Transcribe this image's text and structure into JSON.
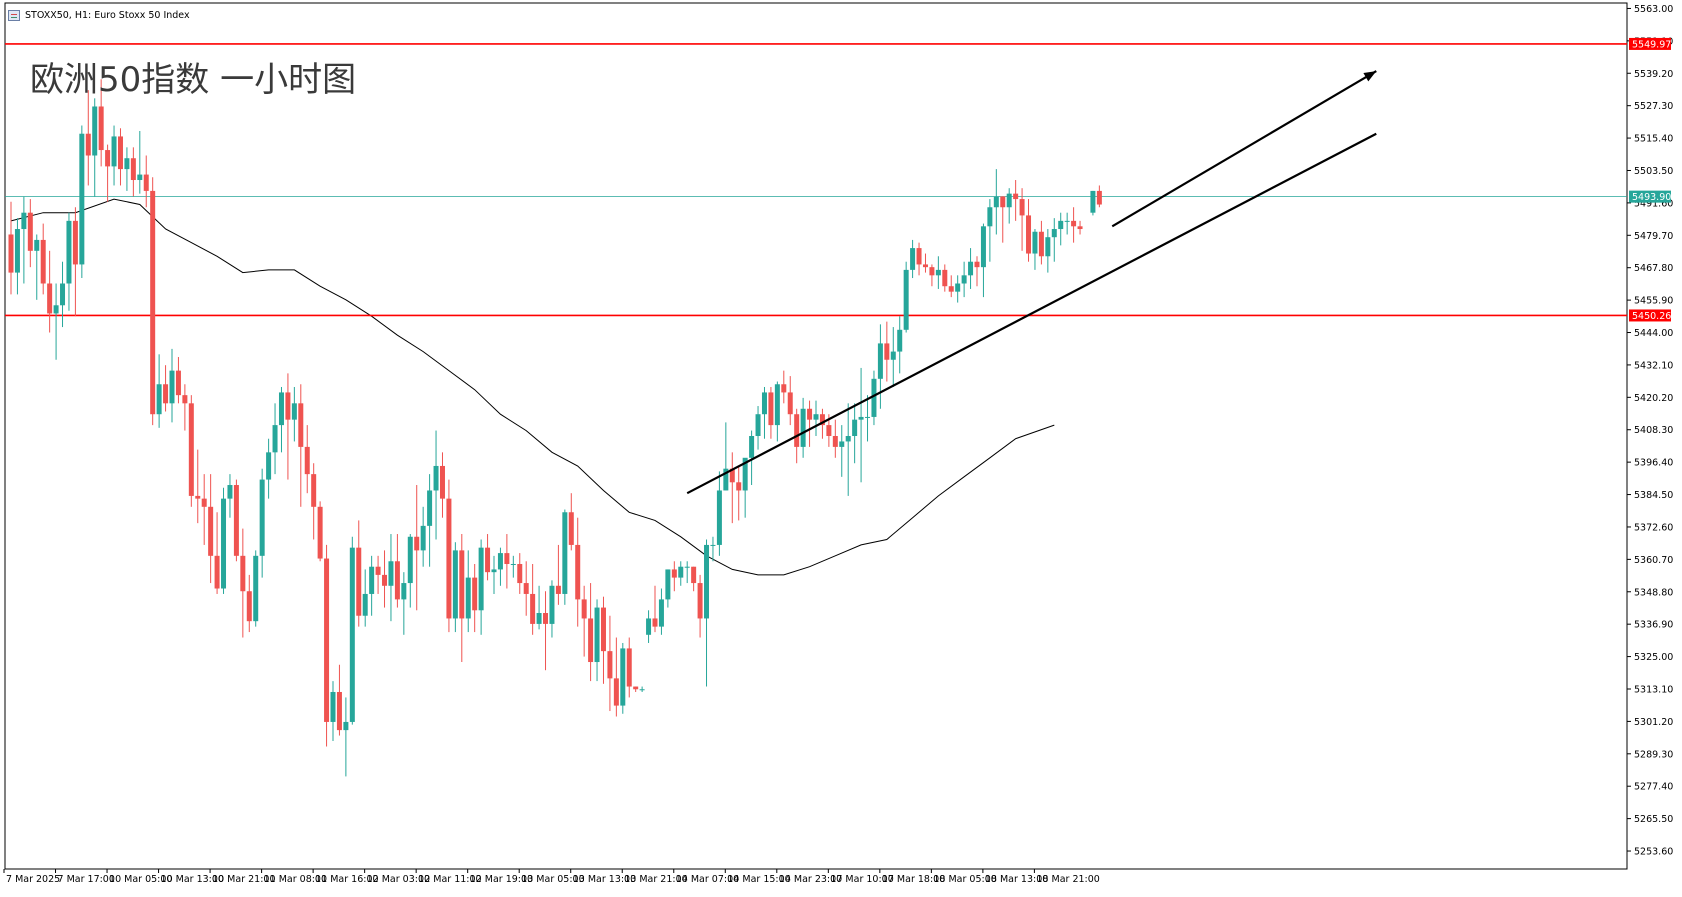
{
  "header": {
    "symbol_info": "STOXX50, H1:  Euro Stoxx 50 Index",
    "icon": "chart-window-icon"
  },
  "watermark_text": "欧洲50指数 一小时图",
  "colors": {
    "bull": "#26a69a",
    "bear": "#ef5350",
    "level_line": "#ff0000",
    "price_line": "#26a69a",
    "ma_line": "#000000",
    "trend_line": "#000000"
  },
  "chart_data": {
    "type": "candlestick",
    "symbol": "STOXX50",
    "timeframe": "H1",
    "title": "Euro Stoxx 50 Index",
    "ylim": [
      5247,
      5565
    ],
    "yticks": [
      5563.0,
      5551.1,
      5539.2,
      5527.3,
      5515.4,
      5503.5,
      5491.6,
      5479.7,
      5467.8,
      5455.9,
      5444.0,
      5432.1,
      5420.2,
      5408.3,
      5396.4,
      5384.5,
      5372.6,
      5360.7,
      5348.8,
      5336.9,
      5325.0,
      5313.1,
      5301.2,
      5289.3,
      5277.4,
      5265.5,
      5253.6
    ],
    "x_tick_labels": [
      "7 Mar 2025",
      "7 Mar 17:00",
      "10 Mar 05:00",
      "10 Mar 13:00",
      "10 Mar 21:00",
      "11 Mar 08:00",
      "11 Mar 16:00",
      "12 Mar 03:00",
      "12 Mar 11:00",
      "12 Mar 19:00",
      "13 Mar 05:00",
      "13 Mar 13:00",
      "13 Mar 21:00",
      "14 Mar 07:00",
      "14 Mar 15:00",
      "14 Mar 23:00",
      "17 Mar 10:00",
      "17 Mar 18:00",
      "18 Mar 05:00",
      "18 Mar 13:00",
      "18 Mar 21:00"
    ],
    "x_tick_positions": [
      0,
      8,
      16,
      24,
      32,
      40,
      48,
      56,
      64,
      72,
      80,
      88,
      96,
      104,
      112,
      120,
      128,
      136,
      144,
      152,
      160
    ],
    "candles": [
      [
        5480,
        5492,
        5458,
        5466
      ],
      [
        5466,
        5486,
        5458,
        5482
      ],
      [
        5482,
        5494,
        5462,
        5488
      ],
      [
        5488,
        5493,
        5468,
        5474
      ],
      [
        5474,
        5480,
        5456,
        5478
      ],
      [
        5478,
        5484,
        5458,
        5462
      ],
      [
        5462,
        5474,
        5444,
        5451
      ],
      [
        5451,
        5462,
        5434,
        5454
      ],
      [
        5454,
        5470,
        5446,
        5462
      ],
      [
        5462,
        5488,
        5452,
        5485
      ],
      [
        5485,
        5490,
        5450,
        5469
      ],
      [
        5469,
        5520,
        5464,
        5517
      ],
      [
        5517,
        5533,
        5498,
        5509
      ],
      [
        5509,
        5530,
        5494,
        5527
      ],
      [
        5527,
        5537,
        5505,
        5511
      ],
      [
        5511,
        5513,
        5492,
        5505
      ],
      [
        5505,
        5520,
        5498,
        5516
      ],
      [
        5516,
        5519,
        5498,
        5504
      ],
      [
        5504,
        5512,
        5496,
        5508
      ],
      [
        5508,
        5512,
        5494,
        5500
      ],
      [
        5500,
        5518,
        5495,
        5502
      ],
      [
        5502,
        5509,
        5490,
        5496
      ],
      [
        5496,
        5501,
        5410,
        5414
      ],
      [
        5414,
        5436,
        5409,
        5425
      ],
      [
        5425,
        5432,
        5415,
        5418
      ],
      [
        5418,
        5438,
        5411,
        5430
      ],
      [
        5430,
        5435,
        5418,
        5421
      ],
      [
        5421,
        5425,
        5408,
        5418
      ],
      [
        5418,
        5421,
        5380,
        5384
      ],
      [
        5384,
        5401,
        5374,
        5383
      ],
      [
        5383,
        5392,
        5366,
        5380
      ],
      [
        5380,
        5392,
        5352,
        5362
      ],
      [
        5362,
        5378,
        5348,
        5350
      ],
      [
        5350,
        5387,
        5348,
        5383
      ],
      [
        5383,
        5392,
        5376,
        5388
      ],
      [
        5388,
        5390,
        5360,
        5362
      ],
      [
        5362,
        5372,
        5332,
        5349
      ],
      [
        5349,
        5355,
        5334,
        5338
      ],
      [
        5338,
        5364,
        5336,
        5362
      ],
      [
        5362,
        5394,
        5354,
        5390
      ],
      [
        5390,
        5405,
        5383,
        5400
      ],
      [
        5400,
        5418,
        5392,
        5410
      ],
      [
        5410,
        5424,
        5400,
        5422
      ],
      [
        5422,
        5429,
        5390,
        5412
      ],
      [
        5412,
        5424,
        5404,
        5418
      ],
      [
        5418,
        5425,
        5380,
        5402
      ],
      [
        5402,
        5410,
        5385,
        5392
      ],
      [
        5392,
        5396,
        5368,
        5380
      ],
      [
        5380,
        5382,
        5360,
        5361
      ],
      [
        5361,
        5366,
        5292,
        5301
      ],
      [
        5301,
        5316,
        5294,
        5312
      ],
      [
        5312,
        5322,
        5296,
        5298
      ],
      [
        5298,
        5310,
        5281,
        5301
      ],
      [
        5301,
        5369,
        5300,
        5365
      ],
      [
        5365,
        5375,
        5336,
        5340
      ],
      [
        5340,
        5357,
        5336,
        5348
      ],
      [
        5348,
        5362,
        5340,
        5358
      ],
      [
        5358,
        5362,
        5348,
        5355
      ],
      [
        5355,
        5364,
        5343,
        5351
      ],
      [
        5351,
        5370,
        5338,
        5360
      ],
      [
        5360,
        5370,
        5343,
        5346
      ],
      [
        5346,
        5356,
        5333,
        5352
      ],
      [
        5352,
        5370,
        5343,
        5369
      ],
      [
        5369,
        5388,
        5342,
        5364
      ],
      [
        5364,
        5380,
        5358,
        5373
      ],
      [
        5373,
        5392,
        5358,
        5386
      ],
      [
        5386,
        5408,
        5368,
        5395
      ],
      [
        5395,
        5400,
        5376,
        5383
      ],
      [
        5383,
        5390,
        5334,
        5339
      ],
      [
        5339,
        5367,
        5334,
        5364
      ],
      [
        5364,
        5370,
        5323,
        5339
      ],
      [
        5339,
        5364,
        5334,
        5354
      ],
      [
        5354,
        5359,
        5334,
        5342
      ],
      [
        5342,
        5368,
        5333,
        5365
      ],
      [
        5365,
        5370,
        5353,
        5356
      ],
      [
        5356,
        5362,
        5348,
        5357
      ],
      [
        5357,
        5365,
        5351,
        5363
      ],
      [
        5363,
        5370,
        5350,
        5359
      ],
      [
        5359,
        5362,
        5354,
        5359
      ],
      [
        5359,
        5363,
        5348,
        5352
      ],
      [
        5352,
        5360,
        5340,
        5348
      ],
      [
        5348,
        5359,
        5333,
        5337
      ],
      [
        5337,
        5351,
        5335,
        5341
      ],
      [
        5341,
        5349,
        5320,
        5337
      ],
      [
        5337,
        5353,
        5332,
        5351
      ],
      [
        5351,
        5366,
        5344,
        5348
      ],
      [
        5348,
        5379,
        5344,
        5378
      ],
      [
        5378,
        5385,
        5364,
        5366
      ],
      [
        5366,
        5376,
        5336,
        5346
      ],
      [
        5346,
        5351,
        5325,
        5339
      ],
      [
        5339,
        5352,
        5316,
        5323
      ],
      [
        5323,
        5346,
        5316,
        5343
      ],
      [
        5343,
        5347,
        5315,
        5327
      ],
      [
        5327,
        5340,
        5305,
        5317
      ],
      [
        5317,
        5332,
        5303,
        5307
      ],
      [
        5307,
        5330,
        5304,
        5328
      ],
      [
        5328,
        5332,
        5310,
        5314
      ],
      [
        5314,
        5314,
        5312,
        5313
      ],
      [
        5313,
        5314,
        5312,
        5313
      ],
      [
        5333,
        5342,
        5330,
        5339
      ],
      [
        5339,
        5351,
        5334,
        5336
      ],
      [
        5336,
        5350,
        5333,
        5346
      ],
      [
        5346,
        5357,
        5343,
        5357
      ],
      [
        5357,
        5360,
        5349,
        5354
      ],
      [
        5354,
        5360,
        5351,
        5358
      ],
      [
        5358,
        5360,
        5352,
        5358
      ],
      [
        5358,
        5358,
        5349,
        5352
      ],
      [
        5352,
        5355,
        5332,
        5339
      ],
      [
        5339,
        5368,
        5314,
        5366
      ],
      [
        5366,
        5369,
        5360,
        5366
      ],
      [
        5366,
        5393,
        5362,
        5386
      ],
      [
        5386,
        5411,
        5386,
        5394
      ],
      [
        5394,
        5400,
        5374,
        5389
      ],
      [
        5389,
        5395,
        5375,
        5386
      ],
      [
        5386,
        5396,
        5376,
        5398
      ],
      [
        5398,
        5408,
        5388,
        5406
      ],
      [
        5406,
        5417,
        5401,
        5414
      ],
      [
        5414,
        5424,
        5405,
        5422
      ],
      [
        5422,
        5424,
        5405,
        5410
      ],
      [
        5410,
        5426,
        5404,
        5425
      ],
      [
        5425,
        5430,
        5418,
        5422
      ],
      [
        5422,
        5428,
        5410,
        5414
      ],
      [
        5414,
        5416,
        5396,
        5402
      ],
      [
        5402,
        5420,
        5398,
        5416
      ],
      [
        5416,
        5419,
        5402,
        5412
      ],
      [
        5412,
        5419,
        5406,
        5414
      ],
      [
        5414,
        5416,
        5405,
        5410
      ],
      [
        5410,
        5414,
        5402,
        5406
      ],
      [
        5406,
        5412,
        5398,
        5402
      ],
      [
        5402,
        5410,
        5391,
        5404
      ],
      [
        5404,
        5418,
        5384,
        5406
      ],
      [
        5406,
        5418,
        5396,
        5412
      ],
      [
        5412,
        5431,
        5389,
        5413
      ],
      [
        5413,
        5421,
        5404,
        5413
      ],
      [
        5413,
        5430,
        5410,
        5427
      ],
      [
        5427,
        5447,
        5416,
        5440
      ],
      [
        5440,
        5448,
        5426,
        5434
      ],
      [
        5434,
        5446,
        5424,
        5437
      ],
      [
        5437,
        5450,
        5429,
        5445
      ],
      [
        5445,
        5470,
        5444,
        5467
      ],
      [
        5467,
        5478,
        5464,
        5475
      ],
      [
        5475,
        5477,
        5465,
        5469
      ],
      [
        5469,
        5473,
        5466,
        5468
      ],
      [
        5468,
        5469,
        5461,
        5465
      ],
      [
        5465,
        5472,
        5460,
        5467
      ],
      [
        5467,
        5469,
        5459,
        5461
      ],
      [
        5461,
        5465,
        5457,
        5459
      ],
      [
        5459,
        5465,
        5455,
        5462
      ],
      [
        5462,
        5470,
        5457,
        5465
      ],
      [
        5465,
        5475,
        5460,
        5470
      ],
      [
        5470,
        5472,
        5461,
        5468
      ],
      [
        5468,
        5484,
        5457,
        5483
      ],
      [
        5483,
        5493,
        5470,
        5490
      ],
      [
        5490,
        5504,
        5480,
        5494
      ],
      [
        5494,
        5494,
        5477,
        5490
      ],
      [
        5490,
        5497,
        5484,
        5495
      ],
      [
        5495,
        5500,
        5485,
        5493
      ],
      [
        5493,
        5497,
        5474,
        5487
      ],
      [
        5487,
        5493,
        5470,
        5473
      ],
      [
        5473,
        5482,
        5467,
        5481
      ],
      [
        5481,
        5485,
        5469,
        5472
      ],
      [
        5472,
        5482,
        5466,
        5479
      ],
      [
        5479,
        5486,
        5470,
        5482
      ],
      [
        5482,
        5488,
        5476,
        5485
      ],
      [
        5485,
        5488,
        5480,
        5485
      ],
      [
        5485,
        5490,
        5477,
        5483
      ],
      [
        5483,
        5485,
        5480,
        5482
      ],
      null,
      [
        5488,
        5496,
        5487,
        5496
      ],
      [
        5496,
        5498,
        5490,
        5491
      ]
    ],
    "moving_average": {
      "index": [
        0,
        5,
        10,
        16,
        20,
        24,
        28,
        32,
        36,
        40,
        44,
        48,
        52,
        56,
        60,
        64,
        68,
        72,
        76,
        80,
        84,
        88,
        92,
        96,
        100,
        104,
        108,
        112,
        116,
        120,
        124,
        128,
        132,
        136,
        140,
        144,
        148,
        152,
        156,
        162
      ],
      "values": [
        5485,
        5488,
        5488,
        5493,
        5491,
        5482,
        5477,
        5472,
        5466,
        5467,
        5467,
        5461,
        5456,
        5450,
        5443,
        5437,
        5430,
        5423,
        5414,
        5408,
        5400,
        5395,
        5386,
        5378,
        5375,
        5369,
        5362,
        5357,
        5355,
        5355,
        5358,
        5362,
        5366,
        5368,
        5376,
        5384,
        5391,
        5398,
        5405,
        5410
      ]
    },
    "horizontal_levels": [
      5549.97,
      5450.26
    ],
    "horizontal_level_labels": [
      "5549.97",
      "5450.26"
    ],
    "current_price": 5493.9,
    "current_price_label": "5493.90",
    "trend_lines": [
      {
        "from_index": 105,
        "from_value": 5385,
        "to_index": 212,
        "to_value": 5517,
        "arrow": false
      },
      {
        "from_index": 171,
        "from_value": 5483,
        "to_index": 212,
        "to_value": 5540,
        "arrow": true
      }
    ],
    "index_range": [
      0,
      212
    ],
    "grid": false
  }
}
